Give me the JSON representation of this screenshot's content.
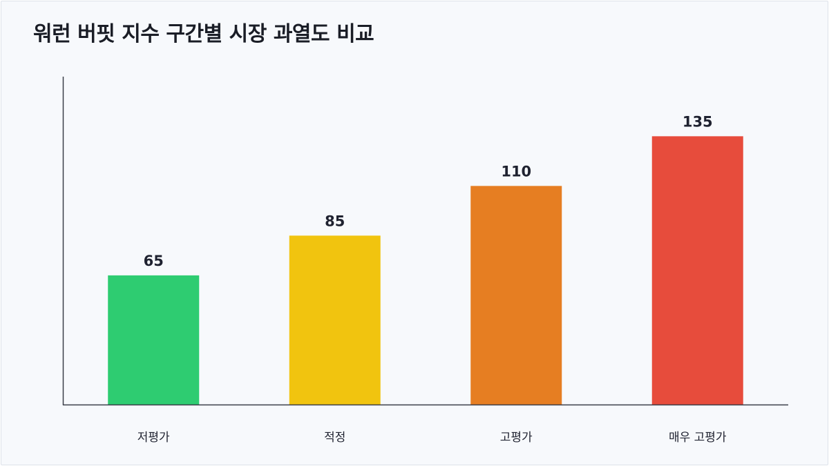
{
  "chart_data": {
    "type": "bar",
    "title": "워런 버핏 지수 구간별 시장 과열도 비교",
    "xlabel": "",
    "ylabel": "",
    "categories": [
      "저평가",
      "적정",
      "고평가",
      "매우 고평가"
    ],
    "values": [
      65,
      85,
      110,
      135
    ],
    "ylim": [
      0,
      165
    ],
    "colors": [
      "#2ecc71",
      "#f1c40f",
      "#e67e22",
      "#e74c3c"
    ],
    "grid": false,
    "legend": "none"
  }
}
